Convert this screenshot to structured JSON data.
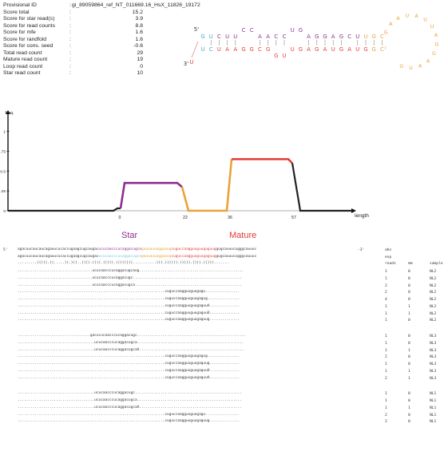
{
  "summary": {
    "separator": ":",
    "rows": [
      {
        "label": "Provisional ID",
        "value": "gi_89059864_ref_NT_011669.16_HsX_11826_19172"
      },
      {
        "label": "Score total",
        "value": "15.2"
      },
      {
        "label": "Score for star read(s)",
        "value": "3.9"
      },
      {
        "label": "Score for read counts",
        "value": "8.8"
      },
      {
        "label": "Score for mfe",
        "value": "1.6"
      },
      {
        "label": "Score for randfold",
        "value": "1.6"
      },
      {
        "label": "Score for cons. seed",
        "value": "-0.6"
      },
      {
        "label": "Total read count",
        "value": "29"
      },
      {
        "label": "Mature read count",
        "value": "19"
      },
      {
        "label": "Loop read count",
        "value": "0"
      },
      {
        "label": "Star read count",
        "value": "10"
      }
    ]
  },
  "hairpin": {
    "five_prime": "5'",
    "three_prime": "3'",
    "top_strand": "GUCUUCCAACCUGAGGAGCUUGC",
    "bottom_strand": "UCUAAGGCGGUUGAGAUGAUGGC",
    "loop": "GAAUAUUAGGAAUG",
    "colors": {
      "star": "#8b2f91",
      "mature": "#e53935",
      "loop": "#e8a33a",
      "flank": "#4aa3c9"
    }
  },
  "profile": {
    "y_axis_label": "freq.",
    "x_axis_label": "length",
    "y_ticks": [
      "1",
      "0.75",
      "0.5",
      "0.25",
      "0"
    ],
    "x_ticks": [
      "0",
      "22",
      "36",
      "57"
    ],
    "star_level": 0.35,
    "mature_level": 0.65,
    "colors": {
      "star": "#8b2f91",
      "loop": "#e8a33a",
      "mature": "#e53935",
      "flank": "#222222",
      "baseline": "#cccccc"
    }
  },
  "alignment": {
    "star_label": "Star",
    "mature_label": "Mature",
    "five_prime": "5'",
    "three_prime": "-3'",
    "obs_label": "obs",
    "exp_label": "exp",
    "col_reads": "reads",
    "col_mm": "mm",
    "col_sample": "sample",
    "precursor_pre": "agacuucaucaucagauucucaccugaagcugcaugac",
    "precursor_star": "ucucaacccucaggacugca",
    "precursor_loop": "gaauauuaggaaug",
    "precursor_mature": "cuguccaagguuguugaguug",
    "precursor_post": "gugcauuucugggcauuuc",
    "exp_star": "ucucaacccucaggacugca",
    "exp_loop": "gaauauuaggaaug",
    "exp_mature": "cuguccaagguuguugaguug",
    "structure": ".........(((((.((.....)).)((..((((.((((.(((((.((((((((...........))).)))))).))))).)))).))))).......",
    "groups": [
      [
        {
          "seq": "...................................ucucaacccucaggacugcaug.................................................",
          "reads": "1",
          "mm": "0",
          "sample": "NL2"
        },
        {
          "seq": "...................................ucucaacccucaggacugc...................................................",
          "reads": "1",
          "mm": "0",
          "sample": "NL2"
        },
        {
          "seq": "...................................ucucaacccucaggacugca..................................................",
          "reads": "2",
          "mm": "0",
          "sample": "NL2"
        },
        {
          "seq": ".....................................................................cuguccaagguuguugagu................",
          "reads": "2",
          "mm": "0",
          "sample": "NL2"
        },
        {
          "seq": ".....................................................................cuguccaagguuguugagug...............",
          "reads": "4",
          "mm": "0",
          "sample": "NL2"
        },
        {
          "seq": ".....................................................................cuguccaagguuguugaguuA..............",
          "reads": "1",
          "mm": "1",
          "sample": "NL2"
        },
        {
          "seq": ".....................................................................cuguccaagguuguugaguuU..............",
          "reads": "1",
          "mm": "1",
          "sample": "NL2"
        },
        {
          "seq": ".....................................................................cuguccaagguuguugaguug..............",
          "reads": "1",
          "mm": "0",
          "sample": "NL2"
        }
      ],
      [
        {
          "seq": "..................................gacucucaacccucaggacugc...................................................",
          "reads": "1",
          "mm": "0",
          "sample": "NL3"
        },
        {
          "seq": "....................................ucucaacccucaggacugca..................................................",
          "reads": "1",
          "mm": "0",
          "sample": "NL3"
        },
        {
          "seq": "....................................ucucaacccucaggacugcaA.................................................",
          "reads": "1",
          "mm": "1",
          "sample": "NL3"
        },
        {
          "seq": ".....................................................................cuguccaagguuguugagug...............",
          "reads": "2",
          "mm": "0",
          "sample": "NL3"
        },
        {
          "seq": ".....................................................................cuguccaagguuguugaguug..............",
          "reads": "1",
          "mm": "0",
          "sample": "NL3"
        },
        {
          "seq": ".....................................................................cuguccaagguuguugaguuU..............",
          "reads": "1",
          "mm": "1",
          "sample": "NL3"
        },
        {
          "seq": ".....................................................................cuguccaagguuguugaguuA..............",
          "reads": "2",
          "mm": "1",
          "sample": "NL3"
        }
      ],
      [
        {
          "seq": "....................................ucucaacccucaggacugc..................................................",
          "reads": "1",
          "mm": "0",
          "sample": "NL1"
        },
        {
          "seq": "....................................ucucaacccucaggacugca.................................................",
          "reads": "1",
          "mm": "0",
          "sample": "NL1"
        },
        {
          "seq": "....................................ucucaacccucaggacugcaA................................................",
          "reads": "1",
          "mm": "1",
          "sample": "NL1"
        },
        {
          "seq": ".....................................................................cuguccaagguuguugagu................",
          "reads": "2",
          "mm": "0",
          "sample": "NL1"
        },
        {
          "seq": ".....................................................................cuguccaagguuguugaguug..............",
          "reads": "2",
          "mm": "0",
          "sample": "NL1"
        }
      ]
    ]
  }
}
